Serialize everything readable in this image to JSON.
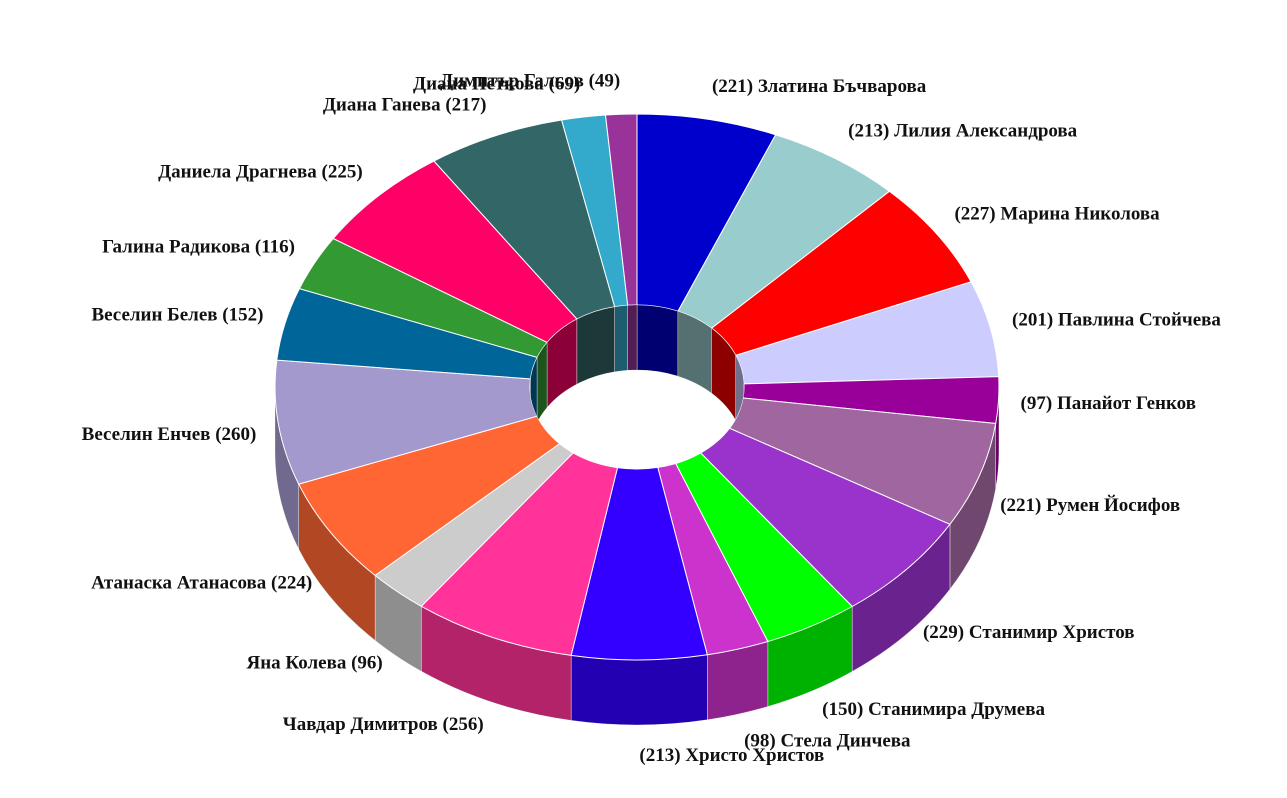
{
  "chart_data": {
    "type": "donut3d",
    "categories": [
      "Златина Бъчварова",
      "Лилия Александрова",
      "Марина Николова",
      "Павлина Стойчева",
      "Панайот Генков",
      "Румен Йосифов",
      "Станимир Христов",
      "Станимира Друмева",
      "Стела Динчева",
      "Христо Христов",
      "Чавдар Димитров",
      "Яна Колева",
      "Атанаска Атанасова",
      "Веселин Енчев",
      "Веселин Белев",
      "Галина Радикова",
      "Даниела Драгнева",
      "Диана Ганева",
      "Диана Петкова",
      "Димитър Гальов"
    ],
    "values": [
      221,
      213,
      227,
      201,
      97,
      221,
      229,
      150,
      98,
      213,
      256,
      96,
      224,
      260,
      152,
      116,
      225,
      217,
      69,
      49
    ],
    "value_labels": [
      "(221)",
      "(213)",
      "(227)",
      "(201)",
      "(97)",
      "(221)",
      "(229)",
      "(150)",
      "(98)",
      "(213)",
      "(256)",
      "(96)",
      "(224)",
      "(260)",
      "(152)",
      "(116)",
      "(225)",
      "(217)",
      "(69)",
      "(49)"
    ],
    "colors": [
      "#0000cc",
      "#99cccc",
      "#ff0000",
      "#ccccff",
      "#990099",
      "#a066a0",
      "#9933cc",
      "#00ff00",
      "#cc33cc",
      "#3300ff",
      "#ff3399",
      "#cccccc",
      "#ff6633",
      "#a399cc",
      "#006699",
      "#339933",
      "#ff0066",
      "#336666",
      "#33aacc",
      "#993399"
    ]
  }
}
